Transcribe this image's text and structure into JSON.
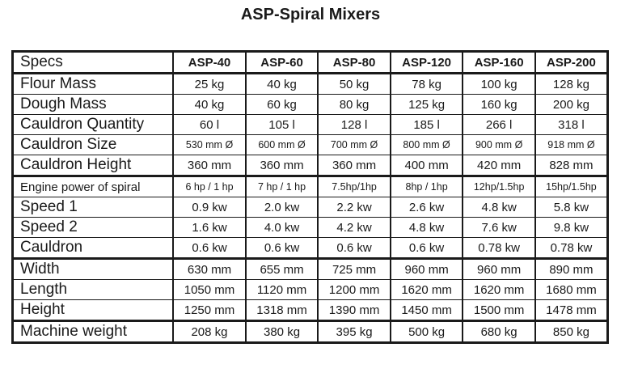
{
  "title": "ASP-Spiral Mixers",
  "table": {
    "columns": [
      "Specs",
      "ASP-40",
      "ASP-60",
      "ASP-80",
      "ASP-120",
      "ASP-160",
      "ASP-200"
    ],
    "groups": [
      {
        "rows": [
          {
            "label": "Flour Mass",
            "values": [
              "25 kg",
              "40 kg",
              "50 kg",
              "78 kg",
              "100 kg",
              "128 kg"
            ]
          },
          {
            "label": "Dough Mass",
            "values": [
              "40 kg",
              "60 kg",
              "80 kg",
              "125 kg",
              "160 kg",
              "200 kg"
            ]
          },
          {
            "label": "Cauldron Quantity",
            "values": [
              "60 l",
              "105 l",
              "128 l",
              "185 l",
              "266 l",
              "318 l"
            ]
          },
          {
            "label": "Cauldron Size",
            "values": [
              "530 mm Ø",
              "600 mm Ø",
              "700 mm Ø",
              "800 mm Ø",
              "900 mm Ø",
              "918 mm Ø"
            ]
          },
          {
            "label": "Cauldron Height",
            "values": [
              "360 mm",
              "360 mm",
              "360 mm",
              "400 mm",
              "420 mm",
              "828 mm"
            ]
          }
        ]
      },
      {
        "rows": [
          {
            "label": "Engine power of spiral",
            "values": [
              "6 hp / 1 hp",
              "7 hp / 1 hp",
              "7.5hp/1hp",
              "8hp / 1hp",
              "12hp/1.5hp",
              "15hp/1.5hp"
            ]
          },
          {
            "label": "Speed 1",
            "values": [
              "0.9 kw",
              "2.0 kw",
              "2.2 kw",
              "2.6 kw",
              "4.8 kw",
              "5.8 kw"
            ]
          },
          {
            "label": "Speed 2",
            "values": [
              "1.6 kw",
              "4.0 kw",
              "4.2 kw",
              "4.8 kw",
              "7.6 kw",
              "9.8 kw"
            ]
          },
          {
            "label": "Cauldron",
            "values": [
              "0.6 kw",
              "0.6 kw",
              "0.6 kw",
              "0.6 kw",
              "0.78 kw",
              "0.78 kw"
            ]
          }
        ]
      },
      {
        "rows": [
          {
            "label": "Width",
            "values": [
              "630 mm",
              "655 mm",
              "725 mm",
              "960 mm",
              "960 mm",
              "890 mm"
            ]
          },
          {
            "label": "Length",
            "values": [
              "1050 mm",
              "1120 mm",
              "1200 mm",
              "1620 mm",
              "1620 mm",
              "1680 mm"
            ]
          },
          {
            "label": "Height",
            "values": [
              "1250 mm",
              "1318 mm",
              "1390 mm",
              "1450 mm",
              "1500 mm",
              "1478 mm"
            ]
          }
        ]
      },
      {
        "rows": [
          {
            "label": "Machine weight",
            "values": [
              "208 kg",
              "380 kg",
              "395 kg",
              "500 kg",
              "680 kg",
              "850 kg"
            ]
          }
        ]
      }
    ]
  },
  "colors": {
    "border": "#1a1a1a",
    "text": "#1a1a1a",
    "background": "#ffffff"
  }
}
